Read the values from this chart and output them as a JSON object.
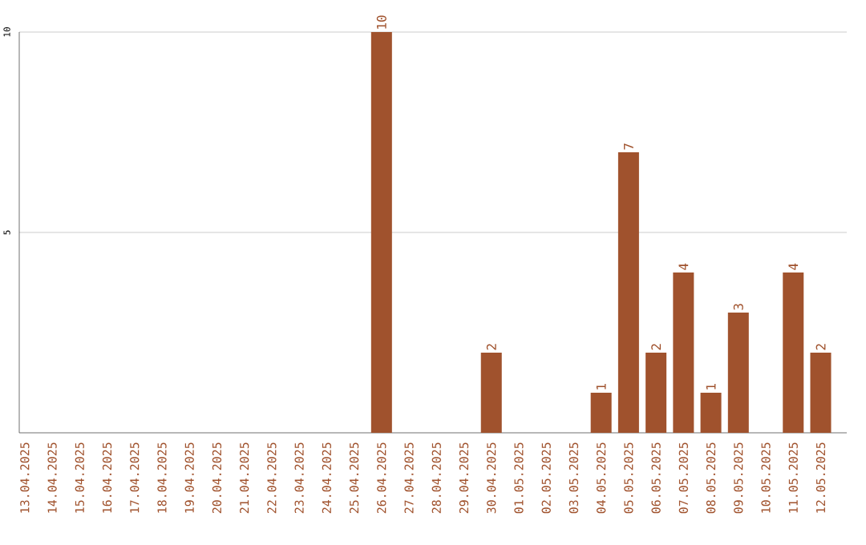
{
  "chart_data": {
    "type": "bar",
    "categories": [
      "13.04.2025",
      "14.04.2025",
      "15.04.2025",
      "16.04.2025",
      "17.04.2025",
      "18.04.2025",
      "19.04.2025",
      "20.04.2025",
      "21.04.2025",
      "22.04.2025",
      "23.04.2025",
      "24.04.2025",
      "25.04.2025",
      "26.04.2025",
      "27.04.2025",
      "28.04.2025",
      "29.04.2025",
      "30.04.2025",
      "01.05.2025",
      "02.05.2025",
      "03.05.2025",
      "04.05.2025",
      "05.05.2025",
      "06.05.2025",
      "07.05.2025",
      "08.05.2025",
      "09.05.2025",
      "10.05.2025",
      "11.05.2025",
      "12.05.2025"
    ],
    "values": [
      0,
      0,
      0,
      0,
      0,
      0,
      0,
      0,
      0,
      0,
      0,
      0,
      0,
      10,
      0,
      0,
      0,
      2,
      0,
      0,
      0,
      1,
      7,
      2,
      4,
      1,
      3,
      0,
      4,
      2
    ],
    "value_labels": [
      null,
      null,
      null,
      null,
      null,
      null,
      null,
      null,
      null,
      null,
      null,
      null,
      null,
      "10",
      null,
      null,
      null,
      "2",
      null,
      null,
      null,
      "1",
      "7",
      "2",
      "4",
      "1",
      "3",
      null,
      "4",
      "2"
    ],
    "color": "#a0522d",
    "ylim": [
      0,
      10
    ],
    "yticks": [
      5,
      10
    ],
    "grid": "y"
  }
}
